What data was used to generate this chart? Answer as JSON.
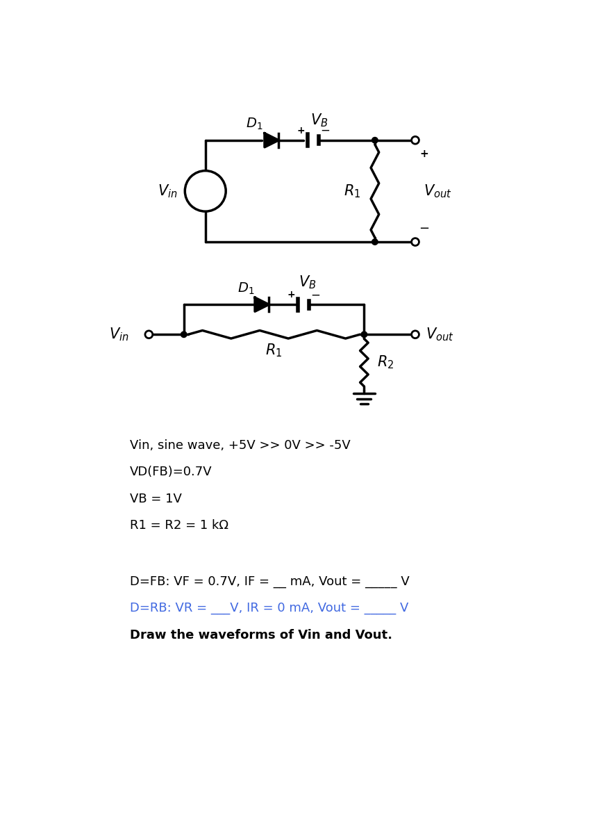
{
  "bg_color": "#ffffff",
  "line_color": "#000000",
  "line_width": 2.5,
  "text_color": "#000000",
  "blue_color": "#4169e1",
  "fig_width": 8.78,
  "fig_height": 12.0,
  "info_lines": [
    "Vin, sine wave, +5V >> 0V >> -5V",
    "VD(FB)=0.7V",
    "VB = 1V",
    "R1 = R2 = 1 kΩ"
  ],
  "dfb_line": "D=FB: VF = 0.7V, IF = __ mA, Vout = _____ V",
  "drb_line": "D=RB: VR = ___V, IR = 0 mA, Vout = _____ V",
  "bold_line": "Draw the waveforms of Vin and Vout."
}
